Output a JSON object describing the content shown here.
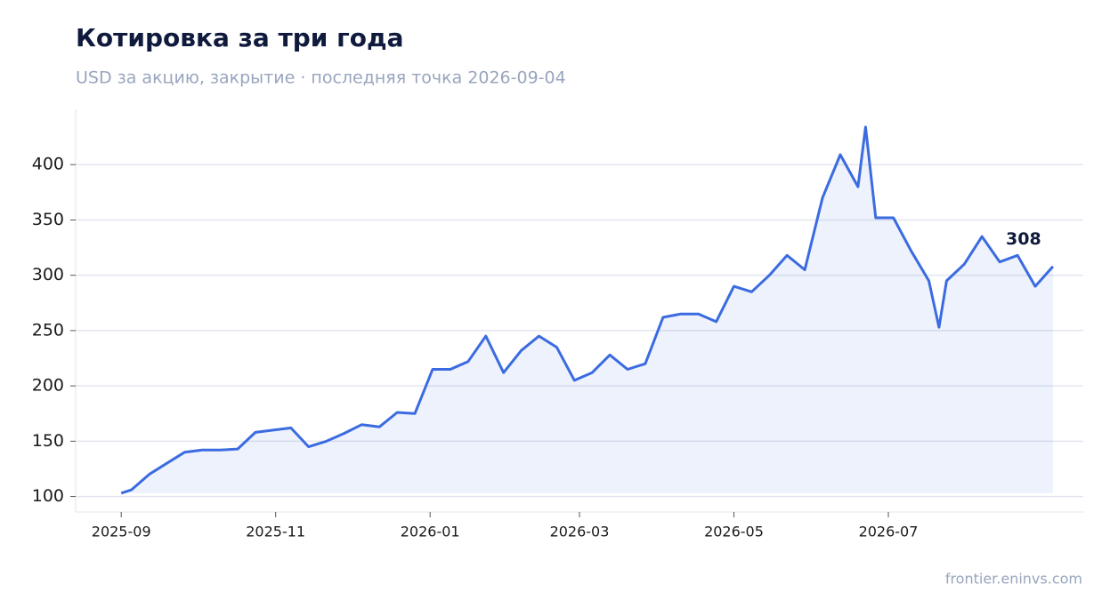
{
  "chart_data": {
    "type": "line",
    "title": "Котировка за три года",
    "subtitle": "USD за акцию, закрытие · последняя точка 2026-09-04",
    "source": "frontier.eninvs.com",
    "x": [
      "2025-09-01",
      "2025-09-05",
      "2025-09-12",
      "2025-09-19",
      "2025-09-26",
      "2025-10-03",
      "2025-10-10",
      "2025-10-17",
      "2025-10-24",
      "2025-10-31",
      "2025-11-07",
      "2025-11-14",
      "2025-11-21",
      "2025-11-28",
      "2025-12-05",
      "2025-12-12",
      "2025-12-19",
      "2025-12-26",
      "2026-01-02",
      "2026-01-09",
      "2026-01-16",
      "2026-01-23",
      "2026-01-30",
      "2026-02-06",
      "2026-02-13",
      "2026-02-20",
      "2026-02-27",
      "2026-03-06",
      "2026-03-13",
      "2026-03-20",
      "2026-03-27",
      "2026-04-03",
      "2026-04-10",
      "2026-04-17",
      "2026-04-24",
      "2026-05-01",
      "2026-05-08",
      "2026-05-15",
      "2026-05-22",
      "2026-05-29",
      "2026-06-05",
      "2026-06-12",
      "2026-06-19",
      "2026-06-22",
      "2026-06-26",
      "2026-07-03",
      "2026-07-10",
      "2026-07-17",
      "2026-07-21",
      "2026-07-24",
      "2026-07-31",
      "2026-08-07",
      "2026-08-14",
      "2026-08-21",
      "2026-08-28",
      "2026-09-04"
    ],
    "series": [
      {
        "name": "Закрытие",
        "color": "#3b6be0",
        "values": [
          103,
          106,
          120,
          130,
          140,
          142,
          142,
          143,
          158,
          160,
          162,
          145,
          150,
          157,
          165,
          163,
          176,
          175,
          215,
          215,
          222,
          245,
          212,
          232,
          245,
          235,
          205,
          212,
          228,
          215,
          220,
          262,
          265,
          265,
          258,
          290,
          285,
          300,
          318,
          305,
          370,
          409,
          380,
          434,
          352,
          352,
          322,
          295,
          253,
          295,
          310,
          335,
          312,
          318,
          290,
          308
        ]
      }
    ],
    "xlim": [
      "2025-08-14",
      "2026-09-16"
    ],
    "xticks": [
      {
        "value": "2025-09-01",
        "label": "2025-09"
      },
      {
        "value": "2025-11-01",
        "label": "2025-11"
      },
      {
        "value": "2026-01-01",
        "label": "2026-01"
      },
      {
        "value": "2026-03-01",
        "label": "2026-03"
      },
      {
        "value": "2026-05-01",
        "label": "2026-05"
      },
      {
        "value": "2026-07-01",
        "label": "2026-07"
      }
    ],
    "ylim": [
      86,
      450
    ],
    "yticks": [
      100,
      150,
      200,
      250,
      300,
      350,
      400
    ],
    "grid": true
  }
}
